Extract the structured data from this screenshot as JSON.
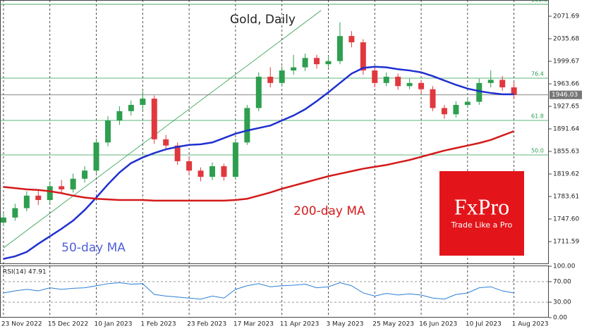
{
  "chart_data": {
    "type": "candlestick",
    "title": "Gold, Daily",
    "up_color": "#2e9e4f",
    "down_color": "#e0383e",
    "x": [
      0,
      1,
      2,
      3,
      4,
      5,
      6,
      7,
      8,
      9,
      10,
      11,
      12,
      13,
      14,
      15,
      16,
      17,
      18,
      19,
      20,
      21,
      22,
      23,
      24,
      25,
      26,
      27,
      28,
      29,
      30,
      31,
      32,
      33,
      34,
      35,
      36,
      37,
      38,
      39,
      40,
      41,
      42,
      43,
      44
    ],
    "xlim": [
      -0.3,
      47
    ],
    "xticks": [
      {
        "value": 0,
        "label": "23 Nov 2022"
      },
      {
        "value": 4,
        "label": "15 Dec 2022"
      },
      {
        "value": 8,
        "label": "10 Jan 2023"
      },
      {
        "value": 12,
        "label": "1 Feb 2023"
      },
      {
        "value": 16,
        "label": "23 Feb 2023"
      },
      {
        "value": 20,
        "label": "17 Mar 2023"
      },
      {
        "value": 24,
        "label": "11 Apr 2023"
      },
      {
        "value": 28,
        "label": "3 May 2023"
      },
      {
        "value": 32,
        "label": "25 May 2023"
      },
      {
        "value": 36,
        "label": "16 Jun 2023"
      },
      {
        "value": 40,
        "label": "10 Jul 2023"
      },
      {
        "value": 44,
        "label": "1 Aug 2023"
      }
    ],
    "open": [
      1742,
      1750,
      1765,
      1785,
      1778,
      1800,
      1795,
      1812,
      1825,
      1870,
      1905,
      1920,
      1930,
      1940,
      1875,
      1865,
      1840,
      1825,
      1815,
      1832,
      1815,
      1870,
      1925,
      1975,
      1965,
      1985,
      1990,
      2005,
      1995,
      2000,
      2040,
      2030,
      1985,
      1965,
      1975,
      1960,
      1965,
      1955,
      1925,
      1915,
      1930,
      1935,
      1965,
      1970,
      1958
    ],
    "high": [
      1758,
      1772,
      1792,
      1793,
      1808,
      1810,
      1820,
      1832,
      1876,
      1912,
      1928,
      1937,
      1952,
      1945,
      1882,
      1870,
      1846,
      1830,
      1838,
      1836,
      1876,
      1930,
      1982,
      1990,
      1992,
      2010,
      2012,
      2010,
      2008,
      2062,
      2048,
      2035,
      1990,
      1982,
      1980,
      1972,
      1970,
      1960,
      1930,
      1936,
      1942,
      1972,
      1985,
      1976,
      1966
    ],
    "low": [
      1736,
      1745,
      1760,
      1770,
      1772,
      1788,
      1790,
      1806,
      1820,
      1864,
      1898,
      1913,
      1922,
      1868,
      1858,
      1834,
      1818,
      1808,
      1810,
      1809,
      1812,
      1866,
      1920,
      1958,
      1960,
      1978,
      1984,
      1988,
      1990,
      1995,
      2022,
      1978,
      1958,
      1960,
      1954,
      1955,
      1948,
      1920,
      1908,
      1910,
      1925,
      1930,
      1958,
      1952,
      1940
    ],
    "close": [
      1750,
      1765,
      1785,
      1778,
      1800,
      1795,
      1812,
      1825,
      1870,
      1905,
      1920,
      1930,
      1940,
      1875,
      1865,
      1840,
      1825,
      1815,
      1832,
      1815,
      1870,
      1925,
      1975,
      1965,
      1985,
      1990,
      2005,
      1995,
      2000,
      2040,
      2030,
      1985,
      1965,
      1975,
      1960,
      1965,
      1955,
      1925,
      1915,
      1930,
      1935,
      1965,
      1970,
      1958,
      1946
    ],
    "lines": [
      {
        "name": "50-day MA",
        "color": "#1f2fd0",
        "values": [
          1684,
          1688,
          1695,
          1708,
          1720,
          1732,
          1745,
          1762,
          1782,
          1803,
          1822,
          1837,
          1846,
          1853,
          1859,
          1863,
          1866,
          1867,
          1870,
          1877,
          1884,
          1889,
          1893,
          1897,
          1905,
          1913,
          1923,
          1936,
          1950,
          1965,
          1980,
          1989,
          1991,
          1990,
          1987,
          1985,
          1982,
          1976,
          1969,
          1962,
          1956,
          1952,
          1949,
          1947,
          1947
        ]
      },
      {
        "name": "200-day MA",
        "color": "#d41a1a",
        "values": [
          1799,
          1797,
          1795,
          1794,
          1792,
          1789,
          1785,
          1782,
          1780,
          1779,
          1778,
          1778,
          1778,
          1777,
          1777,
          1777,
          1777,
          1777,
          1777,
          1777,
          1778,
          1780,
          1785,
          1790,
          1796,
          1801,
          1806,
          1811,
          1816,
          1820,
          1824,
          1828,
          1831,
          1834,
          1838,
          1842,
          1847,
          1852,
          1857,
          1861,
          1865,
          1869,
          1874,
          1881,
          1888
        ]
      }
    ],
    "ylim": [
      1675.6,
      2097.6
    ],
    "yticks": [
      2071.69,
      2035.68,
      1999.67,
      1963.66,
      1927.65,
      1891.64,
      1855.63,
      1819.62,
      1783.61,
      {
        "value": 1747.6,
        "label": "1747.60"
      },
      1711.59
    ],
    "current_price": 1946.03,
    "fib_levels": [
      {
        "label": "100.0",
        "price": 2090.8
      },
      {
        "label": "76.4",
        "price": 1972.7
      },
      {
        "label": "61.8",
        "price": 1905.2
      },
      {
        "label": "50.0",
        "price": 1850.0
      }
    ],
    "fib_color": "#2e9e4f",
    "rsi": {
      "label": "RSI(14) 47.91",
      "color": "#2b7fd6",
      "values": [
        48,
        52,
        55,
        52,
        58,
        55,
        57,
        58,
        62,
        66,
        68,
        65,
        66,
        45,
        42,
        40,
        38,
        36,
        42,
        38,
        55,
        62,
        66,
        60,
        62,
        63,
        65,
        58,
        60,
        68,
        62,
        48,
        42,
        47,
        44,
        46,
        44,
        38,
        36,
        45,
        48,
        58,
        60,
        52,
        47.91
      ],
      "ylim": [
        0,
        100
      ],
      "yticks": [
        {
          "value": 100,
          "label": "100.00"
        },
        {
          "value": 70,
          "label": "70.00"
        },
        {
          "value": 30,
          "label": "30.00"
        },
        {
          "value": 0,
          "label": "0.00"
        }
      ]
    },
    "brand": {
      "name": "FxPro",
      "slogan": "Trade Like a Pro"
    }
  }
}
